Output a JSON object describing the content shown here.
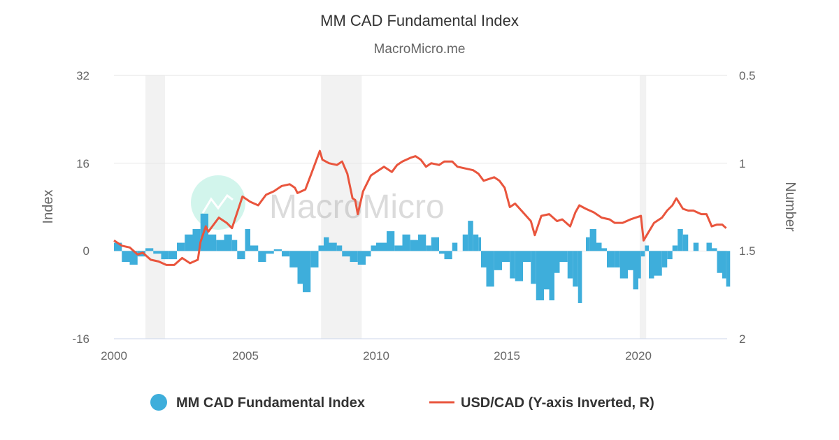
{
  "chart_data": {
    "type": "bar+line",
    "title": "MM CAD Fundamental Index",
    "subtitle": "MacroMicro.me",
    "watermark": "MacroMicro",
    "xlabel": "",
    "ylabel_left": "Index",
    "ylabel_right": "Number",
    "x_ticks": [
      "2000",
      "2005",
      "2010",
      "2015",
      "2020"
    ],
    "y_left_ticks": [
      "32",
      "16",
      "0",
      "-16"
    ],
    "y_right_ticks": [
      "0.5",
      "1",
      "1.5",
      "2"
    ],
    "ylim_left": [
      -16,
      32
    ],
    "ylim_right": [
      2,
      0.5
    ],
    "right_axis_inverted": true,
    "grid": true,
    "legend_position": "bottom",
    "recession_shading": [
      [
        2001.2,
        2001.95
      ],
      [
        2007.9,
        2009.45
      ],
      [
        2020.05,
        2020.3
      ]
    ],
    "colors": {
      "index": "#3eaedb",
      "usdcad": "#e9553d",
      "shading": "#f2f2f2"
    },
    "series": [
      {
        "name": "MM CAD Fundamental Index",
        "type": "bar",
        "axis": "left",
        "x": [
          2000.0,
          2000.3,
          2000.6,
          2000.9,
          2001.2,
          2001.5,
          2001.8,
          2002.1,
          2002.4,
          2002.7,
          2003.0,
          2003.3,
          2003.6,
          2003.9,
          2004.2,
          2004.5,
          2004.7,
          2005.0,
          2005.2,
          2005.5,
          2005.8,
          2006.1,
          2006.4,
          2006.7,
          2007.0,
          2007.2,
          2007.5,
          2007.8,
          2008.0,
          2008.2,
          2008.5,
          2008.7,
          2009.0,
          2009.3,
          2009.6,
          2009.8,
          2010.0,
          2010.4,
          2010.7,
          2011.0,
          2011.3,
          2011.6,
          2011.9,
          2012.1,
          2012.4,
          2012.6,
          2012.9,
          2013.1,
          2013.3,
          2013.5,
          2013.7,
          2013.9,
          2014.0,
          2014.2,
          2014.5,
          2014.8,
          2015.1,
          2015.3,
          2015.6,
          2015.9,
          2016.1,
          2016.4,
          2016.6,
          2016.8,
          2017.0,
          2017.3,
          2017.5,
          2017.7,
          2017.85,
          2018.0,
          2018.15,
          2018.4,
          2018.6,
          2018.8,
          2019.1,
          2019.3,
          2019.6,
          2019.8,
          2020.0,
          2020.1,
          2020.25,
          2020.4,
          2020.6,
          2020.9,
          2021.1,
          2021.3,
          2021.5,
          2021.7,
          2021.9,
          2022.1,
          2022.3,
          2022.6,
          2022.8,
          2023.0,
          2023.2,
          2023.35
        ],
        "values": [
          1.5,
          -2,
          -2.5,
          -1,
          0.5,
          -0.5,
          -1.5,
          -1.5,
          1.5,
          3,
          4,
          6.8,
          3,
          2,
          3,
          2,
          -1.5,
          4,
          1,
          -2,
          -0.5,
          0.3,
          -1,
          -3,
          -6,
          -7.5,
          -3,
          1,
          2.5,
          1.5,
          1,
          -1,
          -2,
          -2.5,
          -1,
          1,
          1.5,
          3.6,
          1,
          3,
          2,
          3,
          1,
          2.5,
          -0.5,
          -1.5,
          1.5,
          0,
          3,
          5.5,
          3,
          2.5,
          -3,
          -6.5,
          -3.5,
          -2,
          -5,
          -5.5,
          -2,
          -6,
          -9,
          -7,
          -9,
          -4,
          -2,
          -5,
          -6.5,
          -9.5,
          0,
          2.5,
          4,
          1.5,
          0.5,
          -3,
          -3,
          -5,
          -3.5,
          -7,
          -5,
          -1,
          1,
          -5,
          -4.5,
          -3,
          -1.5,
          1,
          4,
          3,
          0,
          1.5,
          0,
          1.5,
          0.5,
          -4,
          -5,
          -6.5
        ]
      },
      {
        "name": "USD/CAD (Y-axis Inverted, R)",
        "type": "line",
        "axis": "right",
        "x": [
          2000.0,
          2000.3,
          2000.6,
          2000.9,
          2001.1,
          2001.4,
          2001.7,
          2002.0,
          2002.3,
          2002.6,
          2002.9,
          2003.2,
          2003.3,
          2003.5,
          2003.6,
          2004.0,
          2004.3,
          2004.5,
          2004.9,
          2005.2,
          2005.5,
          2005.8,
          2006.1,
          2006.4,
          2006.7,
          2006.9,
          2007.0,
          2007.3,
          2007.5,
          2007.85,
          2007.95,
          2008.2,
          2008.5,
          2008.7,
          2008.9,
          2009.1,
          2009.2,
          2009.3,
          2009.5,
          2009.8,
          2010.0,
          2010.3,
          2010.6,
          2010.8,
          2011.0,
          2011.3,
          2011.5,
          2011.7,
          2011.9,
          2012.1,
          2012.4,
          2012.6,
          2012.9,
          2013.1,
          2013.4,
          2013.7,
          2013.9,
          2014.1,
          2014.5,
          2014.7,
          2014.9,
          2015.1,
          2015.3,
          2015.6,
          2015.9,
          2016.05,
          2016.3,
          2016.6,
          2016.9,
          2017.1,
          2017.4,
          2017.6,
          2017.75,
          2018.0,
          2018.3,
          2018.6,
          2018.9,
          2019.1,
          2019.4,
          2019.7,
          2019.9,
          2020.1,
          2020.2,
          2020.4,
          2020.6,
          2020.9,
          2021.1,
          2021.3,
          2021.45,
          2021.7,
          2021.9,
          2022.1,
          2022.4,
          2022.6,
          2022.8,
          2023.0,
          2023.2,
          2023.35
        ],
        "values": [
          1.44,
          1.47,
          1.48,
          1.52,
          1.51,
          1.55,
          1.56,
          1.58,
          1.58,
          1.54,
          1.57,
          1.55,
          1.45,
          1.36,
          1.39,
          1.31,
          1.34,
          1.37,
          1.19,
          1.22,
          1.24,
          1.18,
          1.16,
          1.13,
          1.12,
          1.14,
          1.17,
          1.15,
          1.07,
          0.93,
          0.98,
          1.0,
          1.01,
          0.99,
          1.06,
          1.2,
          1.21,
          1.29,
          1.16,
          1.07,
          1.05,
          1.02,
          1.05,
          1.01,
          0.99,
          0.97,
          0.96,
          0.98,
          1.02,
          1.0,
          1.01,
          0.99,
          0.99,
          1.02,
          1.03,
          1.04,
          1.06,
          1.1,
          1.08,
          1.1,
          1.14,
          1.25,
          1.23,
          1.28,
          1.33,
          1.41,
          1.3,
          1.29,
          1.33,
          1.32,
          1.36,
          1.28,
          1.24,
          1.26,
          1.28,
          1.31,
          1.32,
          1.34,
          1.34,
          1.32,
          1.31,
          1.3,
          1.44,
          1.39,
          1.34,
          1.31,
          1.27,
          1.24,
          1.2,
          1.26,
          1.27,
          1.27,
          1.29,
          1.29,
          1.36,
          1.35,
          1.35,
          1.37
        ]
      }
    ]
  }
}
